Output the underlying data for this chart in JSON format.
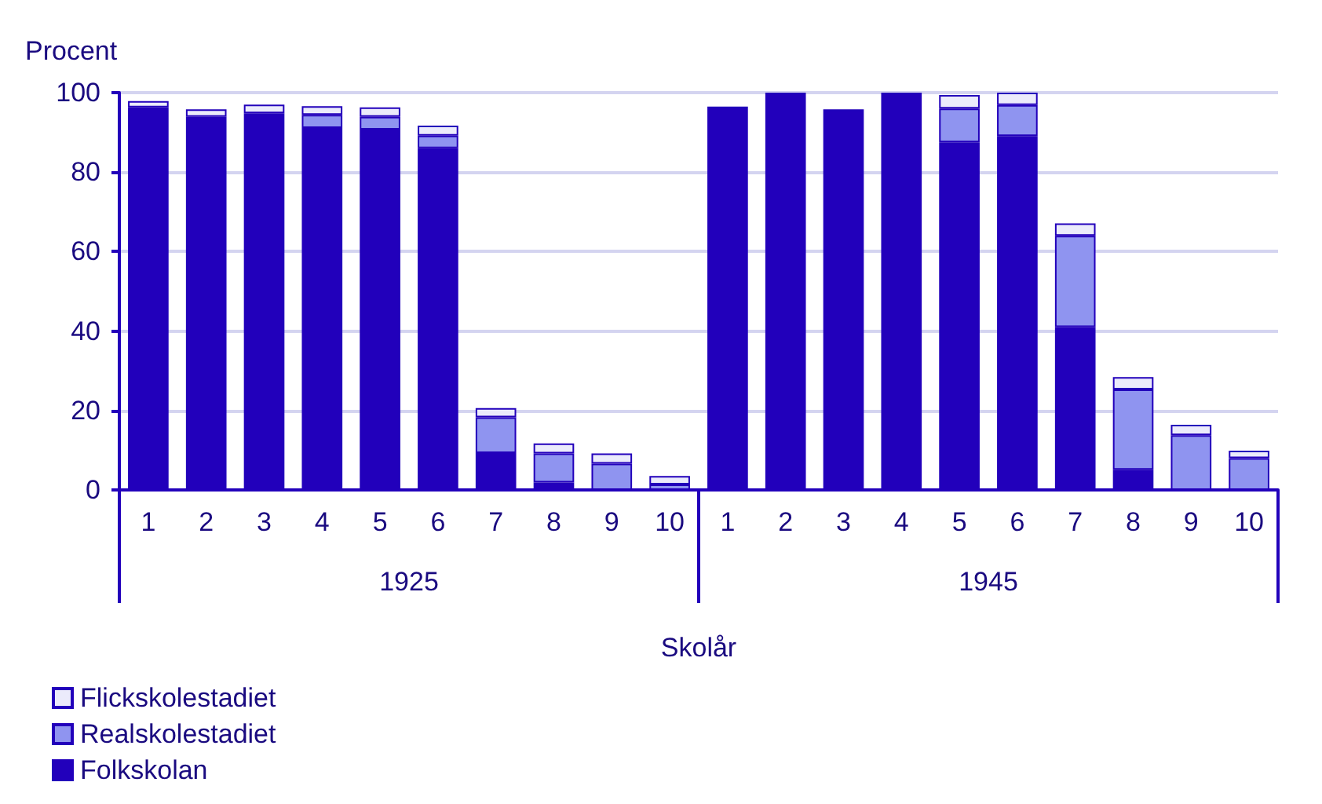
{
  "chart_data": {
    "type": "bar",
    "stacked": true,
    "ylabel": "Procent",
    "xlabel": "Skolår",
    "categories": [
      "1",
      "2",
      "3",
      "4",
      "5",
      "6",
      "7",
      "8",
      "9",
      "10",
      "1",
      "2",
      "3",
      "4",
      "5",
      "6",
      "7",
      "8",
      "9",
      "10"
    ],
    "annotations": [
      "1925",
      "1945"
    ],
    "series": [
      {
        "name": "Folkskolan",
        "color": "#2200bb",
        "values": [
          96.3,
          93.9,
          94.8,
          91.1,
          90.7,
          86.0,
          9.3,
          1.9,
          0,
          0,
          96.5,
          100,
          95.8,
          100,
          87.5,
          89.1,
          41.0,
          5.1,
          0,
          0
        ]
      },
      {
        "name": "Realskolestadiet",
        "color": "#8f94f0",
        "values": [
          0,
          0,
          0,
          3.3,
          3.2,
          3.2,
          9.0,
          7.3,
          6.6,
          1.4,
          0,
          0,
          0,
          0,
          8.5,
          7.8,
          23.0,
          20.2,
          13.8,
          8.0
        ]
      },
      {
        "name": "Flickskolestadiet",
        "color": "#ebebfb",
        "values": [
          1.6,
          1.9,
          2.2,
          2.2,
          2.4,
          2.5,
          2.3,
          2.5,
          2.6,
          2.1,
          0,
          0,
          0,
          0,
          3.4,
          3.1,
          3.1,
          3.1,
          2.6,
          1.9
        ]
      }
    ],
    "ylim": [
      0,
      100
    ],
    "yticks": [
      0,
      20,
      40,
      60,
      80,
      100
    ],
    "grid": "y",
    "legend": "bottom left"
  }
}
